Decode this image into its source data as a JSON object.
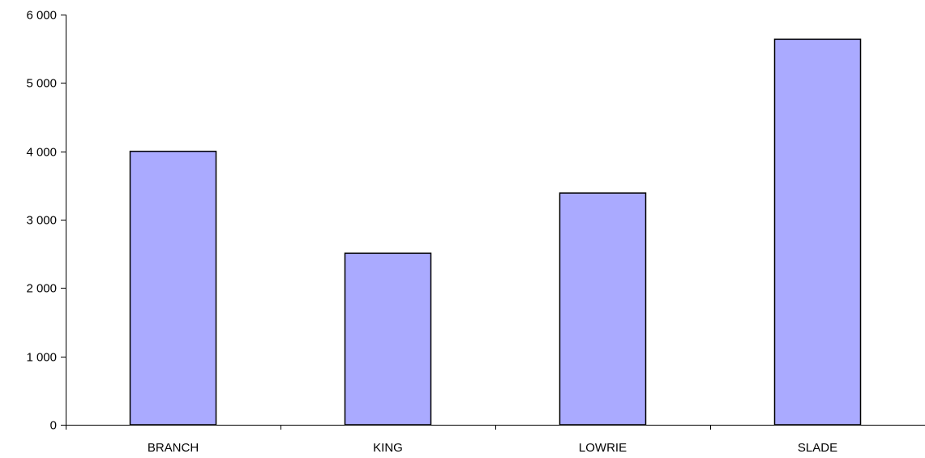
{
  "chart_data": {
    "type": "bar",
    "title": "",
    "xlabel": "",
    "ylabel": "",
    "categories": [
      "BRANCH",
      "KING",
      "LOWRIE",
      "SLADE"
    ],
    "values": [
      4000,
      2510,
      3390,
      5640
    ],
    "ylim": [
      0,
      6000
    ],
    "yticks": [
      0,
      1000,
      2000,
      3000,
      4000,
      5000,
      6000
    ],
    "ytick_labels": [
      "0",
      "1 000",
      "2 000",
      "3 000",
      "4 000",
      "5 000",
      "6 000"
    ],
    "grid": false,
    "legend": "none",
    "bar_color": "#aaaaff",
    "bar_edge_color": "#000000"
  }
}
